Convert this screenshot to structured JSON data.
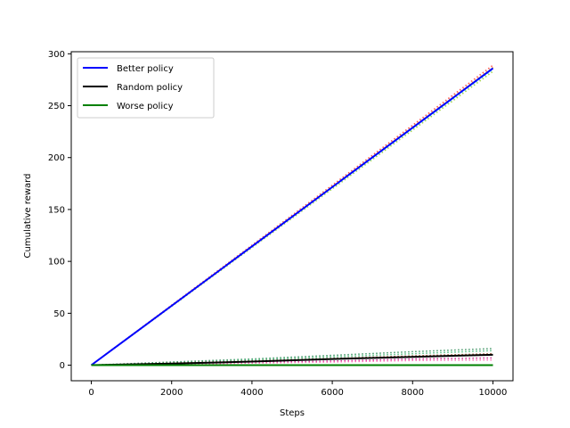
{
  "chart_data": {
    "type": "line",
    "xlabel": "Steps",
    "ylabel": "Cumulative reward",
    "xlim": [
      -500,
      10500
    ],
    "ylim": [
      -15,
      302
    ],
    "xticks": [
      "0",
      "2000",
      "4000",
      "6000",
      "8000",
      "10000"
    ],
    "yticks": [
      "0",
      "50",
      "100",
      "150",
      "200",
      "250",
      "300"
    ],
    "legend_position": "top-left",
    "grid": false,
    "series": [
      {
        "name": "Better policy",
        "color": "#0000ff",
        "x": [
          0,
          10000
        ],
        "y": [
          0,
          286
        ]
      },
      {
        "name": "Random policy",
        "color": "#000000",
        "x": [
          0,
          2000,
          4000,
          6000,
          8000,
          10000
        ],
        "y": [
          0,
          1.5,
          3.5,
          6,
          8,
          10
        ]
      },
      {
        "name": "Worse policy",
        "color": "#008000",
        "x": [
          0,
          10000
        ],
        "y": [
          0,
          0
        ]
      }
    ],
    "individual_runs": [
      {
        "color": "#ff4040",
        "x": [
          0,
          10000
        ],
        "y": [
          0,
          289
        ]
      },
      {
        "color": "#ff8c00",
        "x": [
          0,
          10000
        ],
        "y": [
          0,
          287
        ]
      },
      {
        "color": "#9acd32",
        "x": [
          0,
          10000
        ],
        "y": [
          0,
          283
        ]
      },
      {
        "color": "#00bfff",
        "x": [
          0,
          10000
        ],
        "y": [
          0,
          285
        ]
      },
      {
        "color": "#2e8b57",
        "x": [
          0,
          2000,
          4000,
          6000,
          8000,
          10000
        ],
        "y": [
          0,
          3,
          6,
          9.5,
          13,
          16
        ]
      },
      {
        "color": "#3cb371",
        "x": [
          0,
          2000,
          4000,
          6000,
          8000,
          10000
        ],
        "y": [
          0,
          2.5,
          5,
          8,
          11,
          14
        ]
      },
      {
        "color": "#8b4513",
        "x": [
          0,
          2000,
          4000,
          6000,
          8000,
          10000
        ],
        "y": [
          0,
          2,
          4,
          6.5,
          9,
          11
        ]
      },
      {
        "color": "#c71585",
        "x": [
          0,
          2000,
          4000,
          6000,
          8000,
          10000
        ],
        "y": [
          0,
          1,
          2.5,
          4,
          6,
          7
        ]
      },
      {
        "color": "#ff69b4",
        "x": [
          0,
          2000,
          4000,
          6000,
          8000,
          10000
        ],
        "y": [
          0,
          0.8,
          2,
          3,
          4.5,
          5
        ]
      },
      {
        "color": "#228b22",
        "x": [
          0,
          10000
        ],
        "y": [
          0,
          0.3
        ]
      }
    ]
  }
}
